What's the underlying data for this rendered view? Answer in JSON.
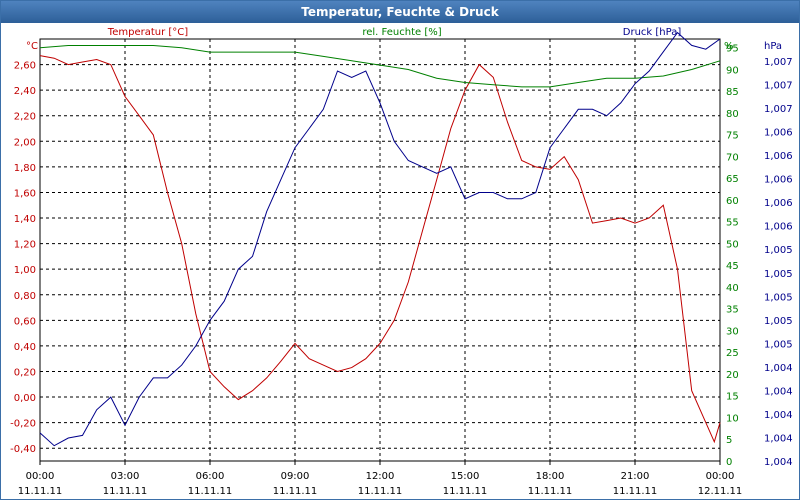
{
  "window": {
    "title": "Temperatur, Feuchte & Druck"
  },
  "colors": {
    "temperature": "#c00000",
    "humidity": "#008000",
    "pressure": "#00008b",
    "title_bg": "#2d5f98"
  },
  "chart_data": {
    "type": "line",
    "title": "Temperatur, Feuchte & Druck",
    "grid": true,
    "x_ticks": [
      {
        "time": "00:00",
        "date": "11.11.11"
      },
      {
        "time": "03:00",
        "date": "11.11.11"
      },
      {
        "time": "06:00",
        "date": "11.11.11"
      },
      {
        "time": "09:00",
        "date": "11.11.11"
      },
      {
        "time": "12:00",
        "date": "11.11.11"
      },
      {
        "time": "15:00",
        "date": "11.11.11"
      },
      {
        "time": "18:00",
        "date": "11.11.11"
      },
      {
        "time": "21:00",
        "date": "11.11.11"
      },
      {
        "time": "00:00",
        "date": "12.11.11"
      }
    ],
    "x_range_hours": [
      0,
      24
    ],
    "axes": {
      "temperature": {
        "label": "Temperatur [°C]",
        "unit": "°C",
        "range": [
          -0.5,
          2.8
        ],
        "ticks": [
          "-0,40",
          "-0,20",
          "0,00",
          "0,20",
          "0,40",
          "0,60",
          "0,80",
          "1,00",
          "1,20",
          "1,40",
          "1,60",
          "1,80",
          "2,00",
          "2,20",
          "2,40",
          "2,60"
        ]
      },
      "humidity": {
        "label": "rel. Feuchte [%]",
        "unit": "%",
        "range": [
          0,
          97
        ],
        "ticks": [
          "0",
          "5",
          "10",
          "15",
          "20",
          "25",
          "30",
          "35",
          "40",
          "45",
          "50",
          "55",
          "60",
          "65",
          "70",
          "75",
          "80",
          "85",
          "90",
          "95"
        ]
      },
      "pressure": {
        "label": "Druck [hPa]",
        "unit": "hPa",
        "range": [
          1003.9,
          1007.2
        ],
        "ticks": [
          "1,004",
          "1,004",
          "1,004",
          "1,004",
          "1,004",
          "1,005",
          "1,005",
          "1,005",
          "1,005",
          "1,005",
          "1,006",
          "1,006",
          "1,006",
          "1,006",
          "1,006",
          "1,007",
          "1,007",
          "1,007"
        ]
      }
    },
    "series": [
      {
        "name": "Temperatur [°C]",
        "axis": "temperature",
        "points": [
          [
            0,
            2.67
          ],
          [
            0.5,
            2.65
          ],
          [
            1,
            2.6
          ],
          [
            1.5,
            2.62
          ],
          [
            2,
            2.64
          ],
          [
            2.5,
            2.6
          ],
          [
            3,
            2.35
          ],
          [
            3.5,
            2.2
          ],
          [
            4,
            2.05
          ],
          [
            4.5,
            1.6
          ],
          [
            5,
            1.2
          ],
          [
            5.5,
            0.65
          ],
          [
            6,
            0.2
          ],
          [
            6.5,
            0.08
          ],
          [
            7,
            -0.02
          ],
          [
            7.5,
            0.05
          ],
          [
            8,
            0.15
          ],
          [
            8.5,
            0.28
          ],
          [
            9,
            0.42
          ],
          [
            9.5,
            0.3
          ],
          [
            10,
            0.25
          ],
          [
            10.5,
            0.2
          ],
          [
            11,
            0.23
          ],
          [
            11.5,
            0.3
          ],
          [
            12,
            0.42
          ],
          [
            12.5,
            0.6
          ],
          [
            13,
            0.9
          ],
          [
            13.5,
            1.3
          ],
          [
            14,
            1.7
          ],
          [
            14.5,
            2.1
          ],
          [
            15,
            2.4
          ],
          [
            15.5,
            2.6
          ],
          [
            16,
            2.5
          ],
          [
            16.5,
            2.15
          ],
          [
            17,
            1.85
          ],
          [
            17.5,
            1.8
          ],
          [
            18,
            1.78
          ],
          [
            18.5,
            1.88
          ],
          [
            19,
            1.7
          ],
          [
            19.5,
            1.36
          ],
          [
            20,
            1.38
          ],
          [
            20.5,
            1.4
          ],
          [
            21,
            1.36
          ],
          [
            21.5,
            1.4
          ],
          [
            22,
            1.5
          ],
          [
            22.5,
            1.0
          ],
          [
            23,
            0.05
          ],
          [
            23.5,
            -0.2
          ],
          [
            23.8,
            -0.35
          ],
          [
            24,
            -0.2
          ]
        ]
      },
      {
        "name": "rel. Feuchte [%]",
        "axis": "humidity",
        "points": [
          [
            0,
            95
          ],
          [
            1,
            95.5
          ],
          [
            2,
            95.5
          ],
          [
            3,
            95.5
          ],
          [
            4,
            95.5
          ],
          [
            5,
            95
          ],
          [
            6,
            94
          ],
          [
            7,
            94
          ],
          [
            8,
            94
          ],
          [
            9,
            94
          ],
          [
            10,
            93
          ],
          [
            11,
            92
          ],
          [
            12,
            91
          ],
          [
            13,
            90
          ],
          [
            14,
            88
          ],
          [
            15,
            87
          ],
          [
            16,
            86.5
          ],
          [
            17,
            86
          ],
          [
            18,
            86
          ],
          [
            19,
            87
          ],
          [
            20,
            88
          ],
          [
            21,
            88
          ],
          [
            22,
            88.5
          ],
          [
            23,
            90
          ],
          [
            24,
            92
          ]
        ]
      },
      {
        "name": "Druck [hPa]",
        "axis": "pressure",
        "points": [
          [
            0,
            1004.12
          ],
          [
            0.5,
            1004.02
          ],
          [
            1,
            1004.08
          ],
          [
            1.5,
            1004.1
          ],
          [
            2,
            1004.3
          ],
          [
            2.5,
            1004.4
          ],
          [
            3,
            1004.18
          ],
          [
            3.5,
            1004.4
          ],
          [
            4,
            1004.55
          ],
          [
            4.5,
            1004.55
          ],
          [
            5,
            1004.65
          ],
          [
            5.5,
            1004.8
          ],
          [
            6,
            1005.0
          ],
          [
            6.5,
            1005.15
          ],
          [
            7,
            1005.4
          ],
          [
            7.5,
            1005.5
          ],
          [
            8,
            1005.85
          ],
          [
            8.5,
            1006.1
          ],
          [
            9,
            1006.35
          ],
          [
            9.5,
            1006.5
          ],
          [
            10,
            1006.65
          ],
          [
            10.5,
            1006.95
          ],
          [
            11,
            1006.9
          ],
          [
            11.5,
            1006.95
          ],
          [
            12,
            1006.7
          ],
          [
            12.5,
            1006.4
          ],
          [
            13,
            1006.25
          ],
          [
            13.5,
            1006.2
          ],
          [
            14,
            1006.15
          ],
          [
            14.5,
            1006.2
          ],
          [
            15,
            1005.95
          ],
          [
            15.5,
            1006.0
          ],
          [
            16,
            1006.0
          ],
          [
            16.5,
            1005.95
          ],
          [
            17,
            1005.95
          ],
          [
            17.5,
            1006.0
          ],
          [
            18,
            1006.35
          ],
          [
            18.5,
            1006.5
          ],
          [
            19,
            1006.65
          ],
          [
            19.5,
            1006.65
          ],
          [
            20,
            1006.6
          ],
          [
            20.5,
            1006.7
          ],
          [
            21,
            1006.85
          ],
          [
            21.5,
            1006.95
          ],
          [
            22,
            1007.1
          ],
          [
            22.5,
            1007.25
          ],
          [
            23,
            1007.15
          ],
          [
            23.5,
            1007.12
          ],
          [
            24,
            1007.2
          ]
        ]
      }
    ]
  }
}
